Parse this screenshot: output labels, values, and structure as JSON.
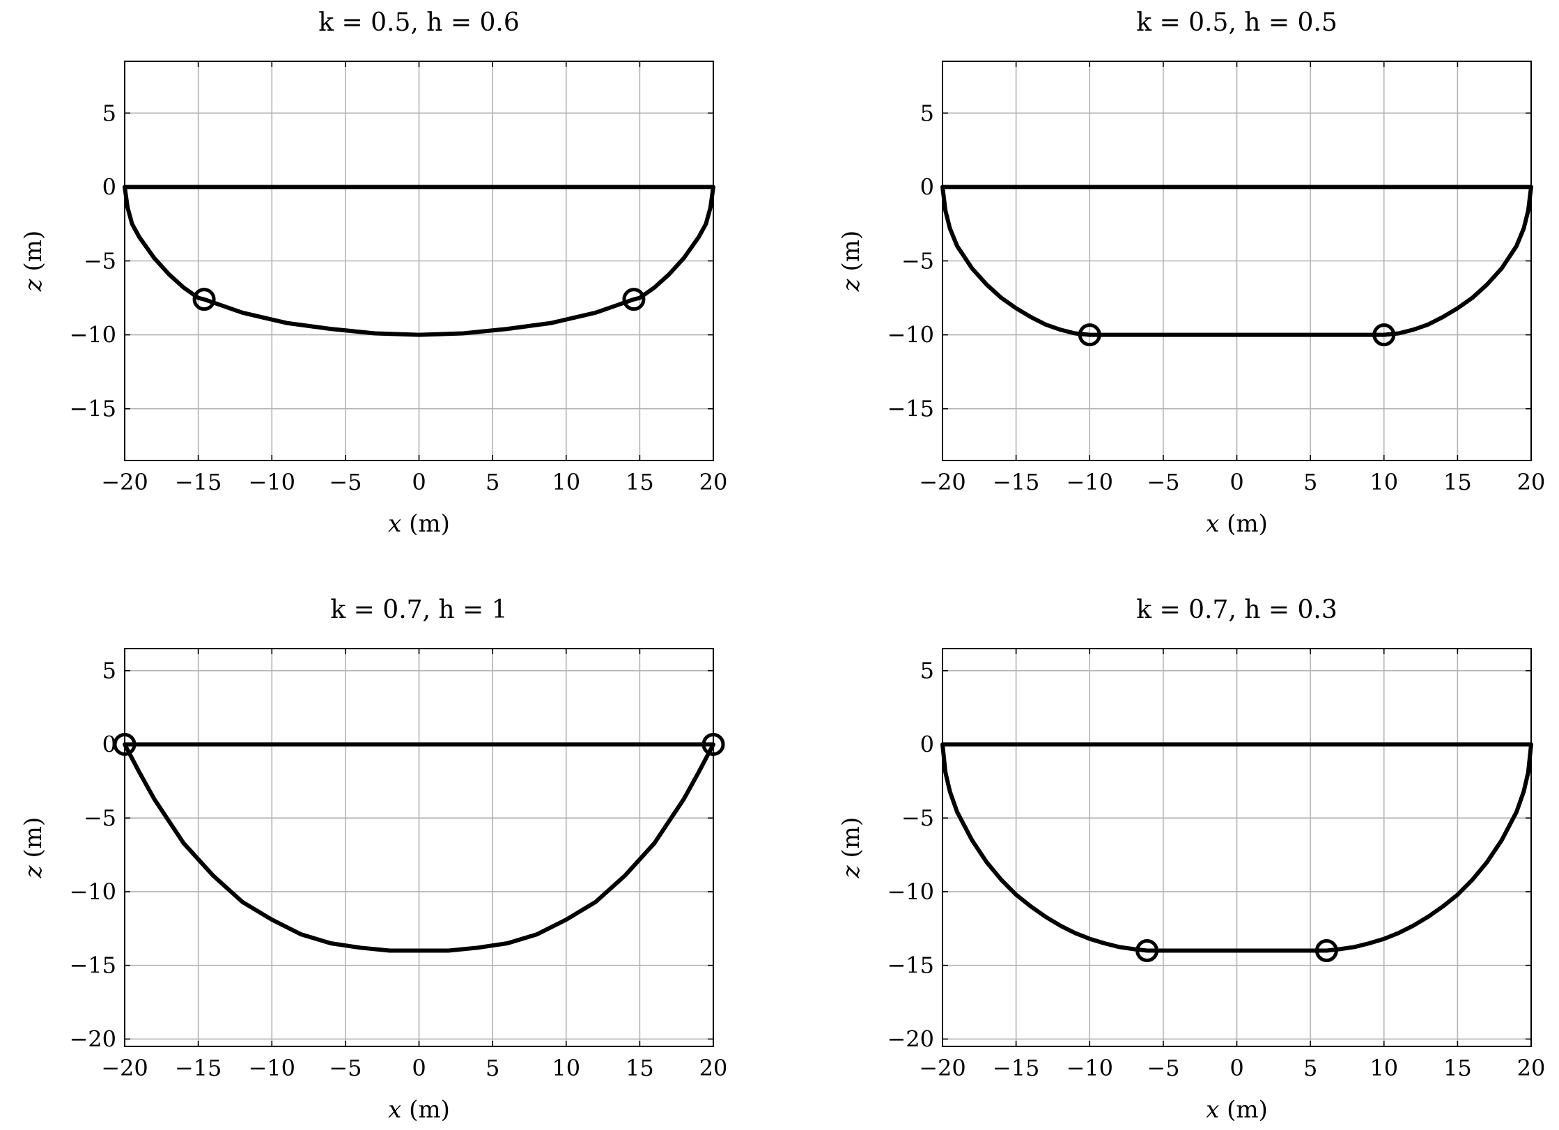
{
  "colors": {
    "line": "#000000",
    "grid": "#b3b3b3",
    "background": "#ffffff"
  },
  "chart_data": [
    {
      "type": "line",
      "title": "k = 0.5, h = 0.6",
      "xlabel_var": "x",
      "xlabel_unit": "(m)",
      "ylabel_var": "z",
      "ylabel_unit": "(m)",
      "xlim": [
        -20,
        20
      ],
      "ylim": [
        -18.5,
        8.5
      ],
      "xticks": [
        -20,
        -15,
        -10,
        -5,
        0,
        5,
        10,
        15,
        20
      ],
      "yticks": [
        5,
        0,
        -5,
        -10,
        -15
      ],
      "grid": true,
      "series": [
        {
          "x": [
            -20,
            -19.8,
            -19.5,
            -19,
            -18,
            -17,
            -16,
            -15,
            -14.6,
            -12,
            -9,
            -6,
            -3,
            0,
            3,
            6,
            9,
            12,
            14.6,
            15,
            16,
            17,
            18,
            19,
            19.5,
            19.8,
            20,
            15,
            0,
            -15,
            -20
          ],
          "y": [
            0,
            -1.4,
            -2.5,
            -3.4,
            -4.8,
            -5.9,
            -6.8,
            -7.5,
            -7.6,
            -8.5,
            -9.2,
            -9.6,
            -9.9,
            -10,
            -9.9,
            -9.6,
            -9.2,
            -8.5,
            -7.6,
            -7.5,
            -6.8,
            -5.9,
            -4.8,
            -3.4,
            -2.5,
            -1.4,
            0,
            0,
            0,
            0,
            0
          ]
        }
      ],
      "markers": {
        "x": [
          -14.6,
          14.6
        ],
        "y": [
          -7.6,
          -7.6
        ]
      }
    },
    {
      "type": "line",
      "title": "k = 0.5, h = 0.5",
      "xlabel_var": "x",
      "xlabel_unit": "(m)",
      "ylabel_var": "z",
      "ylabel_unit": "(m)",
      "xlim": [
        -20,
        20
      ],
      "ylim": [
        -18.5,
        8.5
      ],
      "xticks": [
        -20,
        -15,
        -10,
        -5,
        0,
        5,
        10,
        15,
        20
      ],
      "yticks": [
        5,
        0,
        -5,
        -10,
        -15
      ],
      "grid": true,
      "series": [
        {
          "x": [
            -20,
            -19.8,
            -19.5,
            -19,
            -18,
            -17,
            -16,
            -15,
            -14,
            -13,
            -12,
            -11,
            -10,
            -5,
            0,
            5,
            10,
            11,
            12,
            13,
            14,
            15,
            16,
            17,
            18,
            19,
            19.5,
            19.8,
            20,
            15,
            0,
            -15,
            -20
          ],
          "y": [
            0,
            -1.6,
            -2.8,
            -4.0,
            -5.5,
            -6.6,
            -7.5,
            -8.2,
            -8.8,
            -9.3,
            -9.65,
            -9.9,
            -10,
            -10,
            -10,
            -10,
            -10,
            -9.9,
            -9.65,
            -9.3,
            -8.8,
            -8.2,
            -7.5,
            -6.6,
            -5.5,
            -4.0,
            -2.8,
            -1.6,
            0,
            0,
            0,
            0,
            0
          ]
        }
      ],
      "markers": {
        "x": [
          -10,
          10
        ],
        "y": [
          -10,
          -10
        ]
      }
    },
    {
      "type": "line",
      "title": "k = 0.7, h = 1",
      "xlabel_var": "x",
      "xlabel_unit": "(m)",
      "ylabel_var": "z",
      "ylabel_unit": "(m)",
      "xlim": [
        -20,
        20
      ],
      "ylim": [
        -20.5,
        6.5
      ],
      "xticks": [
        -20,
        -15,
        -10,
        -5,
        0,
        5,
        10,
        15,
        20
      ],
      "yticks": [
        5,
        0,
        -5,
        -10,
        -15,
        -20
      ],
      "grid": true,
      "series": [
        {
          "x": [
            -20,
            -19,
            -18,
            -16,
            -14,
            -12,
            -10,
            -8,
            -6,
            -4,
            -2,
            0,
            2,
            4,
            6,
            8,
            10,
            12,
            14,
            16,
            18,
            19,
            20,
            15,
            0,
            -15,
            -20
          ],
          "y": [
            0,
            -1.9,
            -3.7,
            -6.7,
            -8.9,
            -10.7,
            -11.9,
            -12.9,
            -13.5,
            -13.8,
            -14,
            -14,
            -14,
            -13.8,
            -13.5,
            -12.9,
            -11.9,
            -10.7,
            -8.9,
            -6.7,
            -3.7,
            -1.9,
            0,
            0,
            0,
            0,
            0
          ]
        }
      ],
      "markers": {
        "x": [
          -20,
          20
        ],
        "y": [
          0,
          0
        ]
      }
    },
    {
      "type": "line",
      "title": "k = 0.7, h = 0.3",
      "xlabel_var": "x",
      "xlabel_unit": "(m)",
      "ylabel_var": "z",
      "ylabel_unit": "(m)",
      "xlim": [
        -20,
        20
      ],
      "ylim": [
        -20.5,
        6.5
      ],
      "xticks": [
        -20,
        -15,
        -10,
        -5,
        0,
        5,
        10,
        15,
        20
      ],
      "yticks": [
        5,
        0,
        -5,
        -10,
        -15,
        -20
      ],
      "grid": true,
      "series": [
        {
          "x": [
            -20,
            -19.8,
            -19.5,
            -19,
            -18,
            -17,
            -16,
            -15,
            -14,
            -13,
            -12,
            -11,
            -10,
            -9,
            -8,
            -7,
            -6.1,
            0,
            6.1,
            7,
            8,
            9,
            10,
            11,
            12,
            13,
            14,
            15,
            16,
            17,
            18,
            19,
            19.5,
            19.8,
            20,
            15,
            0,
            -15,
            -20
          ],
          "y": [
            0,
            -1.9,
            -3.2,
            -4.6,
            -6.5,
            -8.0,
            -9.2,
            -10.2,
            -11.0,
            -11.7,
            -12.3,
            -12.8,
            -13.2,
            -13.5,
            -13.75,
            -13.9,
            -14,
            -14,
            -14,
            -13.9,
            -13.75,
            -13.5,
            -13.2,
            -12.8,
            -12.3,
            -11.7,
            -11.0,
            -10.2,
            -9.2,
            -8.0,
            -6.5,
            -4.6,
            -3.2,
            -1.9,
            0,
            0,
            0,
            0,
            0
          ]
        }
      ],
      "markers": {
        "x": [
          -6.1,
          6.1
        ],
        "y": [
          -14,
          -14
        ]
      }
    }
  ]
}
